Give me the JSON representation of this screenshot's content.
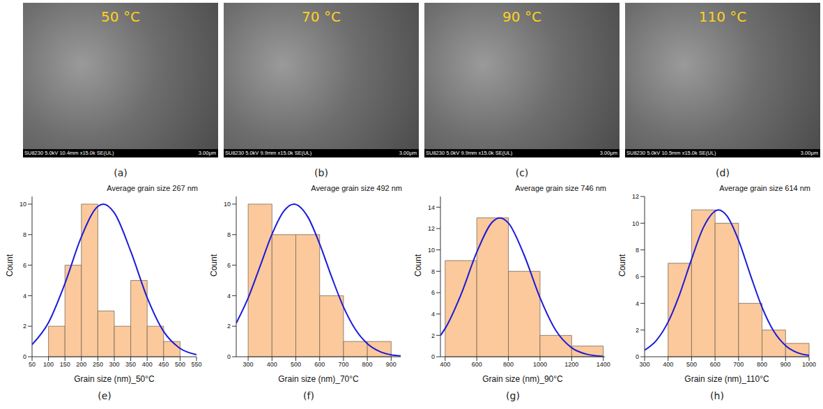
{
  "images": [
    {
      "panel": "(a)",
      "label": "50 °C",
      "info": "SU8230 5.0kV 10.4mm x15.0k SE(UL)",
      "scale": "3.00μm"
    },
    {
      "panel": "(b)",
      "label": "70 °C",
      "info": "SU8230 5.0kV 9.9mm x15.0k SE(UL)",
      "scale": "3.00μm"
    },
    {
      "panel": "(c)",
      "label": "90 °C",
      "info": "SU8230 5.0kV 9.9mm x15.0k SE(UL)",
      "scale": "3.00μm"
    },
    {
      "panel": "(d)",
      "label": "110 °C",
      "info": "SU8230 5.0kV 10.5mm x15.0k SE(UL)",
      "scale": "3.00μm"
    }
  ],
  "chart_data": [
    {
      "type": "histogram",
      "panel": "(e)",
      "title": "Average grain size 267 nm",
      "x_label": "Grain size (nm)_50°C",
      "y_label": "Count",
      "bins": [
        100,
        150,
        200,
        250,
        300,
        350,
        400,
        450,
        500
      ],
      "counts": [
        2,
        6,
        10,
        3,
        2,
        5,
        2,
        1
      ],
      "color": "#fbc99b",
      "xlim": [
        50,
        550
      ],
      "xticks": [
        50,
        100,
        150,
        200,
        250,
        300,
        350,
        400,
        450,
        500,
        550
      ],
      "ylim": [
        0,
        10.5
      ],
      "yticks": [
        0,
        2,
        4,
        6,
        8,
        10
      ],
      "curve": {
        "color": "#1a1adb",
        "x": [
          50,
          100,
          150,
          200,
          250,
          267,
          300,
          350,
          400,
          450,
          500,
          550
        ],
        "values": [
          0.8,
          2.24,
          4.8,
          7.86,
          9.85,
          10,
          9.43,
          6.91,
          3.88,
          1.66,
          0.55,
          0.14
        ]
      }
    },
    {
      "type": "histogram",
      "panel": "(f)",
      "title": "Average grain size 492 nm",
      "x_label": "Grain size (nm)_70°C",
      "y_label": "Count",
      "bins": [
        300,
        400,
        500,
        600,
        700,
        800,
        900
      ],
      "counts": [
        10,
        8,
        8,
        4,
        1,
        1
      ],
      "color": "#fbc99b",
      "xlim": [
        250,
        940
      ],
      "xticks": [
        300,
        400,
        500,
        600,
        700,
        800,
        900
      ],
      "ylim": [
        0,
        10.5
      ],
      "yticks": [
        0,
        2,
        4,
        6,
        8,
        10
      ],
      "curve": {
        "color": "#1a1adb",
        "x": [
          250,
          300,
          350,
          400,
          450,
          492,
          550,
          600,
          650,
          700,
          750,
          800,
          850,
          900,
          940
        ],
        "values": [
          2.2,
          3.85,
          5.93,
          8.03,
          9.55,
          10,
          9.17,
          7.39,
          5.24,
          3.26,
          1.79,
          0.86,
          0.36,
          0.13,
          0.06
        ]
      }
    },
    {
      "type": "histogram",
      "panel": "(g)",
      "title": "Average grain size 746 nm",
      "x_label": "Grain size (nm)_90°C",
      "y_label": "Count",
      "bins": [
        400,
        600,
        800,
        1000,
        1200,
        1400
      ],
      "counts": [
        9,
        13,
        8,
        2,
        1
      ],
      "color": "#fbc99b",
      "xlim": [
        370,
        1410
      ],
      "xticks": [
        400,
        600,
        800,
        1000,
        1200,
        1400
      ],
      "ylim": [
        0,
        15
      ],
      "yticks": [
        0,
        2,
        4,
        6,
        8,
        10,
        12,
        14
      ],
      "curve": {
        "color": "#1a1adb",
        "x": [
          370,
          400,
          500,
          600,
          700,
          746,
          800,
          900,
          1000,
          1100,
          1200,
          1300,
          1400
        ],
        "values": [
          1.99,
          2.65,
          5.82,
          9.79,
          12.64,
          13,
          12.51,
          9.49,
          5.52,
          2.46,
          0.84,
          0.22,
          0.04
        ]
      }
    },
    {
      "type": "histogram",
      "panel": "(h)",
      "title": "Average grain size 614 nm",
      "x_label": "Grain size (nm)_110°C",
      "y_label": "Count",
      "bins": [
        400,
        500,
        600,
        700,
        800,
        900,
        1000
      ],
      "counts": [
        7,
        11,
        10,
        4,
        2,
        1
      ],
      "color": "#fbc99b",
      "xlim": [
        300,
        1000
      ],
      "xticks": [
        300,
        400,
        500,
        600,
        700,
        800,
        900,
        1000
      ],
      "ylim": [
        0,
        12
      ],
      "yticks": [
        0,
        2,
        4,
        6,
        8,
        10,
        12
      ],
      "curve": {
        "color": "#1a1adb",
        "x": [
          300,
          350,
          400,
          450,
          500,
          550,
          614,
          650,
          700,
          750,
          800,
          850,
          900,
          950,
          1000
        ],
        "values": [
          0.49,
          1.22,
          2.6,
          4.72,
          7.31,
          9.67,
          11,
          10.56,
          8.72,
          6.14,
          3.7,
          1.9,
          0.84,
          0.31,
          0.1
        ]
      }
    }
  ]
}
